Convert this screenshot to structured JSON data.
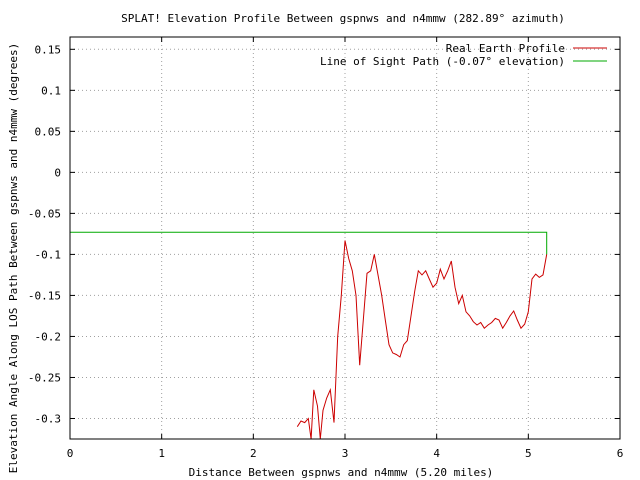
{
  "chart_data": {
    "type": "line",
    "title": "SPLAT! Elevation Profile Between gspnws and n4mmw (282.89° azimuth)",
    "xlabel": "Distance Between gspnws and n4mmw (5.20 miles)",
    "ylabel": "Elevation Angle Along LOS Path Between gspnws and n4mmw (degrees)",
    "xlim": [
      0,
      6
    ],
    "ylim": [
      -0.325,
      0.165
    ],
    "xticks": [
      0,
      1,
      2,
      3,
      4,
      5,
      6
    ],
    "xtick_labels": [
      "0",
      "1",
      "2",
      "3",
      "4",
      "5",
      "6"
    ],
    "yticks": [
      0.15,
      0.1,
      0.05,
      0,
      -0.05,
      -0.1,
      -0.15,
      -0.2,
      -0.25,
      -0.3
    ],
    "ytick_labels": [
      "0.15",
      "0.1",
      "0.05",
      "0",
      "-0.05",
      "-0.1",
      "-0.15",
      "-0.2",
      "-0.25",
      "-0.3"
    ],
    "grid": true,
    "legend_position": "top-right",
    "series": [
      {
        "name": "Real Earth Profile",
        "color": "#cc0000",
        "x": [
          2.48,
          2.52,
          2.56,
          2.6,
          2.63,
          2.66,
          2.7,
          2.73,
          2.76,
          2.8,
          2.84,
          2.88,
          2.92,
          2.96,
          3.0,
          3.04,
          3.08,
          3.12,
          3.16,
          3.2,
          3.24,
          3.28,
          3.32,
          3.36,
          3.4,
          3.44,
          3.48,
          3.52,
          3.56,
          3.6,
          3.64,
          3.68,
          3.72,
          3.76,
          3.8,
          3.84,
          3.88,
          3.92,
          3.96,
          4.0,
          4.04,
          4.08,
          4.12,
          4.16,
          4.2,
          4.24,
          4.28,
          4.32,
          4.36,
          4.4,
          4.44,
          4.48,
          4.52,
          4.56,
          4.6,
          4.64,
          4.68,
          4.72,
          4.76,
          4.8,
          4.84,
          4.88,
          4.92,
          4.96,
          5.0,
          5.04,
          5.08,
          5.12,
          5.16,
          5.2
        ],
        "y": [
          -0.31,
          -0.303,
          -0.305,
          -0.3,
          -0.325,
          -0.265,
          -0.285,
          -0.325,
          -0.29,
          -0.275,
          -0.265,
          -0.305,
          -0.2,
          -0.15,
          -0.083,
          -0.105,
          -0.12,
          -0.15,
          -0.235,
          -0.18,
          -0.123,
          -0.12,
          -0.1,
          -0.125,
          -0.15,
          -0.18,
          -0.21,
          -0.22,
          -0.222,
          -0.225,
          -0.21,
          -0.205,
          -0.175,
          -0.145,
          -0.12,
          -0.125,
          -0.12,
          -0.13,
          -0.14,
          -0.135,
          -0.118,
          -0.13,
          -0.12,
          -0.108,
          -0.14,
          -0.16,
          -0.15,
          -0.17,
          -0.175,
          -0.182,
          -0.186,
          -0.183,
          -0.19,
          -0.186,
          -0.183,
          -0.178,
          -0.18,
          -0.19,
          -0.183,
          -0.175,
          -0.169,
          -0.18,
          -0.19,
          -0.185,
          -0.17,
          -0.13,
          -0.124,
          -0.128,
          -0.125,
          -0.1
        ]
      },
      {
        "name": "Line of Sight Path (-0.07° elevation)",
        "color": "#00aa00",
        "x": [
          0,
          5.2,
          5.2
        ],
        "y": [
          -0.073,
          -0.073,
          -0.1
        ]
      }
    ]
  }
}
